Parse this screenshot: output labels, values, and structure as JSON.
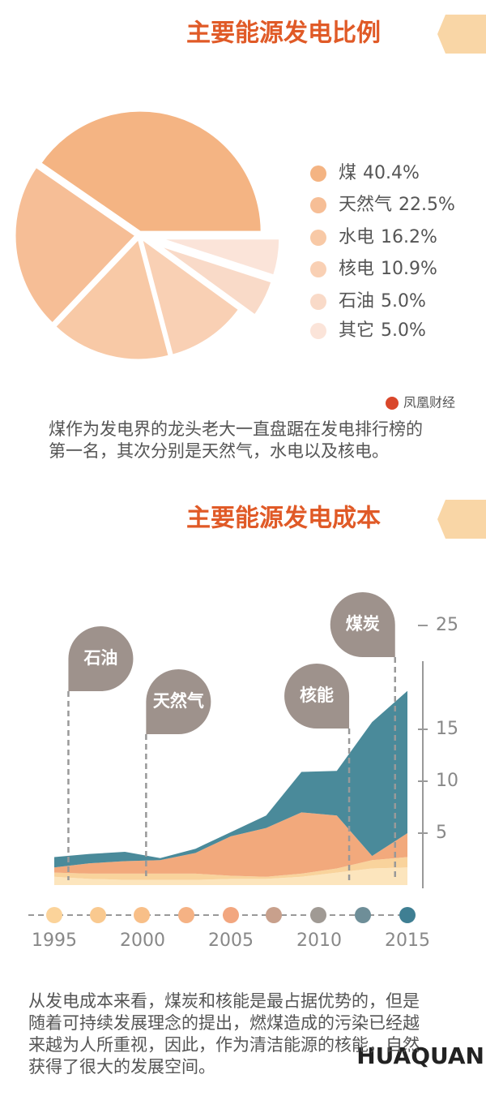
{
  "chart_data": [
    {
      "type": "pie",
      "title": "主要能源发电比例",
      "categories": [
        "煤",
        "天然气",
        "水电",
        "核电",
        "石油",
        "其它"
      ],
      "values": [
        40.4,
        22.5,
        16.2,
        10.9,
        5.0,
        5.0
      ],
      "value_labels": [
        "40.4%",
        "22.5%",
        "16.2%",
        "10.9%",
        "5.0%",
        "5.0%"
      ],
      "colors": [
        "#f4b483",
        "#f6be96",
        "#f8c9a6",
        "#f9d0b4",
        "#f9dac8",
        "#fbe4d9"
      ],
      "legend": "right"
    },
    {
      "type": "area",
      "title": "主要能源发电成本",
      "stacked": true,
      "x": [
        1995,
        1997,
        1999,
        2001,
        2003,
        2005,
        2007,
        2009,
        2011,
        2013,
        2015
      ],
      "series": [
        {
          "color": "#fce5bd",
          "values": [
            0.8,
            0.6,
            0.5,
            0.5,
            0.5,
            0.6,
            0.6,
            0.8,
            1.2,
            1.6,
            1.7
          ]
        },
        {
          "color": "#f9d39c",
          "values": [
            0.4,
            0.5,
            0.6,
            0.6,
            0.6,
            0.3,
            0.2,
            0.3,
            0.4,
            0.8,
            1.0
          ]
        },
        {
          "color": "#f2a97c",
          "values": [
            0.5,
            1.0,
            1.2,
            1.3,
            2.0,
            3.8,
            4.7,
            5.9,
            5.1,
            0.4,
            2.3
          ]
        },
        {
          "color": "#4a8a9a",
          "values": [
            1.0,
            0.9,
            0.9,
            0.2,
            0.4,
            0.4,
            1.2,
            3.9,
            4.3,
            12.9,
            13.7
          ]
        }
      ],
      "xlim": [
        1995,
        2015
      ],
      "xticks": [
        1995,
        2000,
        2005,
        2010,
        2015
      ],
      "ylim": [
        0,
        25
      ],
      "yticks": [
        5,
        10,
        15,
        25
      ],
      "annotations": [
        {
          "text": "石油",
          "x": 1995.8
        },
        {
          "text": "天然气",
          "x": 2000.2
        },
        {
          "text": "核能",
          "x": 2011.7
        },
        {
          "text": "煤炭",
          "x": 2014.3
        }
      ]
    }
  ],
  "source": "凤凰财经",
  "paragraphs": [
    [
      "煤作为发电界的龙头老大一直盘踞在发电排行榜的",
      "第一名，其次分别是天然气，水电以及核电。"
    ],
    [
      "从发电成本来看，煤炭和核能是最占据优势的，但是",
      "随着可持续发展理念的提出，燃煤造成的污染已经越",
      "来越为人所重视，因此，作为清洁能源的核能，自然",
      "获得了很大的发展空间。"
    ]
  ],
  "logo": "HUAQUAN"
}
